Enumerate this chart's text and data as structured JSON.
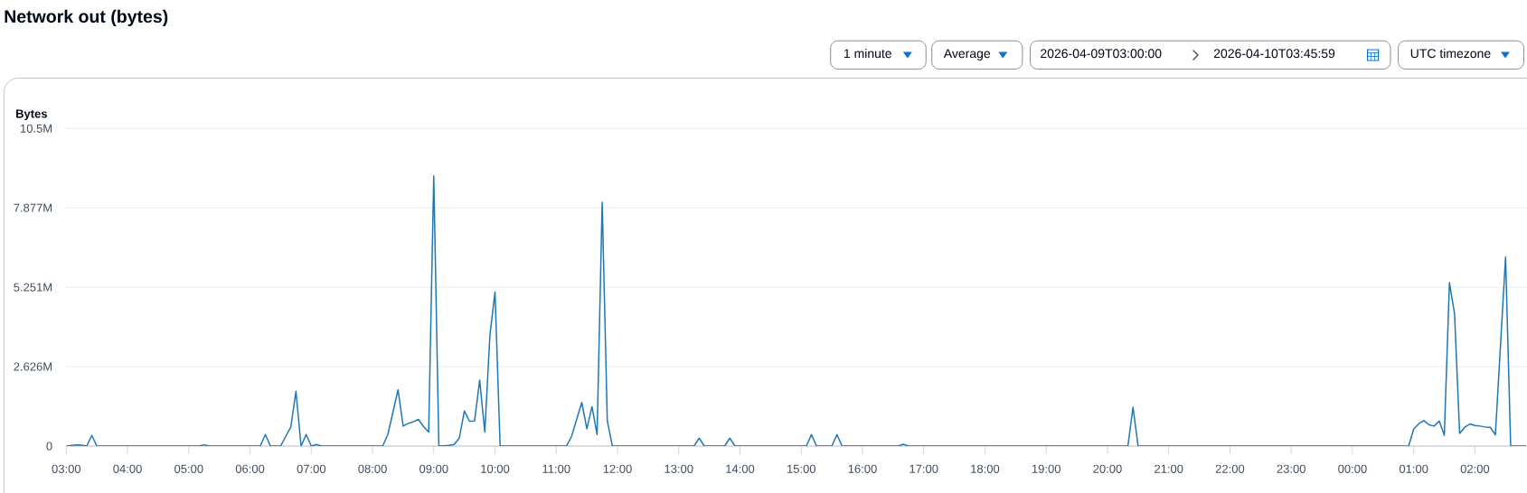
{
  "chart_data": {
    "type": "line",
    "title": "Network out (bytes)",
    "ylabel": "Bytes",
    "annotations": [
      "1 minute",
      "Average",
      "2026-04-09T03:00:00",
      "2026-04-10T03:45:59",
      "UTC timezone"
    ],
    "x": [
      "2026-04-09T03:00",
      "2026-04-09T03:10",
      "2026-04-09T03:15",
      "2026-04-09T03:20",
      "2026-04-09T03:25",
      "2026-04-09T03:30",
      "2026-04-09T05:10",
      "2026-04-09T05:15",
      "2026-04-09T05:20",
      "2026-04-09T06:10",
      "2026-04-09T06:15",
      "2026-04-09T06:20",
      "2026-04-09T06:30",
      "2026-04-09T06:35",
      "2026-04-09T06:40",
      "2026-04-09T06:45",
      "2026-04-09T06:50",
      "2026-04-09T06:55",
      "2026-04-09T07:00",
      "2026-04-09T07:05",
      "2026-04-09T07:10",
      "2026-04-09T08:10",
      "2026-04-09T08:15",
      "2026-04-09T08:20",
      "2026-04-09T08:25",
      "2026-04-09T08:30",
      "2026-04-09T08:35",
      "2026-04-09T08:40",
      "2026-04-09T08:45",
      "2026-04-09T08:50",
      "2026-04-09T08:55",
      "2026-04-09T09:00",
      "2026-04-09T09:05",
      "2026-04-09T09:15",
      "2026-04-09T09:20",
      "2026-04-09T09:25",
      "2026-04-09T09:30",
      "2026-04-09T09:35",
      "2026-04-09T09:40",
      "2026-04-09T09:45",
      "2026-04-09T09:50",
      "2026-04-09T09:55",
      "2026-04-09T10:00",
      "2026-04-09T10:05",
      "2026-04-09T11:10",
      "2026-04-09T11:15",
      "2026-04-09T11:25",
      "2026-04-09T11:30",
      "2026-04-09T11:35",
      "2026-04-09T11:40",
      "2026-04-09T11:45",
      "2026-04-09T11:50",
      "2026-04-09T11:55",
      "2026-04-09T13:15",
      "2026-04-09T13:20",
      "2026-04-09T13:25",
      "2026-04-09T13:45",
      "2026-04-09T13:50",
      "2026-04-09T13:55",
      "2026-04-09T15:05",
      "2026-04-09T15:10",
      "2026-04-09T15:15",
      "2026-04-09T15:30",
      "2026-04-09T15:35",
      "2026-04-09T15:40",
      "2026-04-09T16:35",
      "2026-04-09T16:40",
      "2026-04-09T16:45",
      "2026-04-09T20:20",
      "2026-04-09T20:25",
      "2026-04-09T20:30",
      "2026-04-10T00:55",
      "2026-04-10T01:00",
      "2026-04-10T01:05",
      "2026-04-10T01:10",
      "2026-04-10T01:15",
      "2026-04-10T01:20",
      "2026-04-10T01:25",
      "2026-04-10T01:30",
      "2026-04-10T01:35",
      "2026-04-10T01:40",
      "2026-04-10T01:45",
      "2026-04-10T01:50",
      "2026-04-10T01:55",
      "2026-04-10T02:00",
      "2026-04-10T02:05",
      "2026-04-10T02:10",
      "2026-04-10T02:15",
      "2026-04-10T02:20",
      "2026-04-10T02:30",
      "2026-04-10T02:35",
      "2026-04-10T02:50"
    ],
    "series": [
      {
        "color": "#1f77b4",
        "values": [
          0,
          40000,
          30000,
          0,
          350000,
          0,
          0,
          40000,
          0,
          0,
          380000,
          0,
          0,
          320000,
          630000,
          1810000,
          0,
          380000,
          0,
          50000,
          0,
          0,
          380000,
          1120000,
          1860000,
          660000,
          750000,
          800000,
          880000,
          640000,
          460000,
          8930000,
          0,
          20000,
          50000,
          260000,
          1160000,
          820000,
          830000,
          2180000,
          460000,
          3660000,
          5090000,
          0,
          0,
          320000,
          1440000,
          570000,
          1300000,
          380000,
          8060000,
          830000,
          0,
          0,
          260000,
          0,
          0,
          260000,
          0,
          0,
          380000,
          0,
          0,
          380000,
          0,
          0,
          60000,
          0,
          0,
          1280000,
          0,
          0,
          560000,
          740000,
          840000,
          700000,
          660000,
          830000,
          360000,
          5400000,
          4380000,
          420000,
          620000,
          730000,
          680000,
          660000,
          630000,
          620000,
          370000,
          6250000,
          0,
          0
        ]
      }
    ],
    "xlim": [
      "2026-04-09T03:00",
      "2026-04-10T02:51"
    ],
    "xticks": [
      {
        "value": "2026-04-09T03:00",
        "label": "03:00"
      },
      {
        "value": "2026-04-09T04:00",
        "label": "04:00"
      },
      {
        "value": "2026-04-09T05:00",
        "label": "05:00"
      },
      {
        "value": "2026-04-09T06:00",
        "label": "06:00"
      },
      {
        "value": "2026-04-09T07:00",
        "label": "07:00"
      },
      {
        "value": "2026-04-09T08:00",
        "label": "08:00"
      },
      {
        "value": "2026-04-09T09:00",
        "label": "09:00"
      },
      {
        "value": "2026-04-09T10:00",
        "label": "10:00"
      },
      {
        "value": "2026-04-09T11:00",
        "label": "11:00"
      },
      {
        "value": "2026-04-09T12:00",
        "label": "12:00"
      },
      {
        "value": "2026-04-09T13:00",
        "label": "13:00"
      },
      {
        "value": "2026-04-09T14:00",
        "label": "14:00"
      },
      {
        "value": "2026-04-09T15:00",
        "label": "15:00"
      },
      {
        "value": "2026-04-09T16:00",
        "label": "16:00"
      },
      {
        "value": "2026-04-09T17:00",
        "label": "17:00"
      },
      {
        "value": "2026-04-09T18:00",
        "label": "18:00"
      },
      {
        "value": "2026-04-09T19:00",
        "label": "19:00"
      },
      {
        "value": "2026-04-09T20:00",
        "label": "20:00"
      },
      {
        "value": "2026-04-09T21:00",
        "label": "21:00"
      },
      {
        "value": "2026-04-09T22:00",
        "label": "22:00"
      },
      {
        "value": "2026-04-09T23:00",
        "label": "23:00"
      },
      {
        "value": "2026-04-10T00:00",
        "label": "00:00"
      },
      {
        "value": "2026-04-10T01:00",
        "label": "01:00"
      },
      {
        "value": "2026-04-10T02:00",
        "label": "02:00"
      }
    ],
    "ylim": [
      0,
      10500000
    ],
    "yticks": [
      0,
      {
        "value": 2626000,
        "label": "2.626M"
      },
      {
        "value": 5251000,
        "label": "5.251M"
      },
      {
        "value": 7877000,
        "label": "7.877M"
      },
      {
        "value": 10500000,
        "label": "10.5M"
      }
    ],
    "grid": "y",
    "line_style": "solid"
  }
}
